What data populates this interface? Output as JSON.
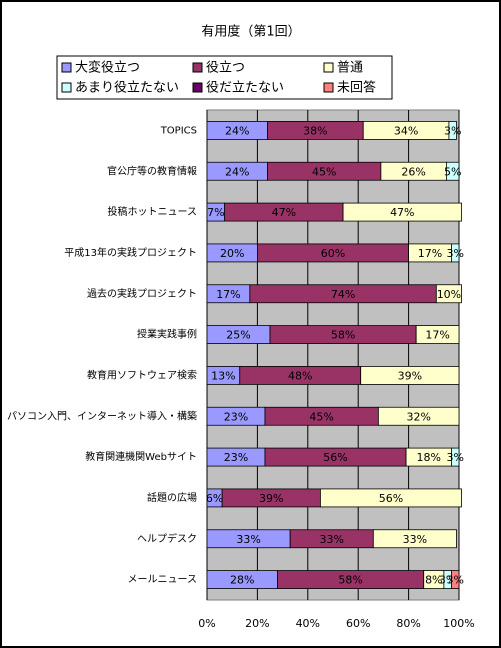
{
  "chart_data": {
    "type": "stacked-bar-horizontal",
    "title": "有用度（第1回）",
    "categories": [
      "TOPICS",
      "官公庁等の教育情報",
      "投稿ホットニュース",
      "平成13年の実践プロジェクト",
      "過去の実践プロジェクト",
      "授業実践事例",
      "教育用ソフトウェア検索",
      "パソコン入門、インターネット導入・構築",
      "教育関連機関Webサイト",
      "話題の広場",
      "ヘルプデスク",
      "メールニュース"
    ],
    "series": [
      {
        "name": "大変役立つ",
        "color": "#9999ff",
        "values": [
          24,
          24,
          7,
          20,
          17,
          25,
          13,
          23,
          23,
          6,
          33,
          28
        ],
        "value_labels": [
          "24%",
          "24%",
          "7%",
          "20%",
          "17%",
          "25%",
          "13%",
          "23%",
          "23%",
          "6%",
          "33%",
          "28%"
        ]
      },
      {
        "name": "役立つ",
        "color": "#993366",
        "values": [
          38,
          45,
          47,
          60,
          74,
          58,
          48,
          45,
          56,
          39,
          33,
          58
        ],
        "value_labels": [
          "38%",
          "45%",
          "47%",
          "60%",
          "74%",
          "58%",
          "48%",
          "45%",
          "56%",
          "39%",
          "33%",
          "58%"
        ]
      },
      {
        "name": "普通",
        "color": "#ffffcc",
        "values": [
          34,
          26,
          47,
          17,
          10,
          17,
          39,
          32,
          18,
          56,
          33,
          8
        ],
        "value_labels": [
          "34%",
          "26%",
          "47%",
          "17%",
          "10%",
          "17%",
          "39%",
          "32%",
          "18%",
          "56%",
          "33%",
          "8%"
        ]
      },
      {
        "name": "あまり役立たない",
        "color": "#ccffff",
        "values": [
          3,
          5,
          null,
          3,
          null,
          null,
          null,
          null,
          3,
          null,
          null,
          3
        ],
        "value_labels": [
          "3%",
          "5%",
          null,
          "3%",
          null,
          null,
          null,
          null,
          "3%",
          null,
          null,
          "3%"
        ]
      },
      {
        "name": "役だ立たない",
        "color": "#660066",
        "values": [
          null,
          null,
          null,
          null,
          null,
          null,
          null,
          null,
          null,
          null,
          null,
          null
        ],
        "value_labels": [
          null,
          null,
          null,
          null,
          null,
          null,
          null,
          null,
          null,
          null,
          null,
          null
        ]
      },
      {
        "name": "未回答",
        "color": "#ff8080",
        "values": [
          null,
          null,
          null,
          null,
          null,
          null,
          null,
          null,
          null,
          null,
          null,
          3
        ],
        "value_labels": [
          null,
          null,
          null,
          null,
          null,
          null,
          null,
          null,
          null,
          null,
          null,
          "3%"
        ]
      }
    ],
    "xlim": [
      0,
      100
    ],
    "xticks": [
      {
        "value": 0,
        "label": "0%"
      },
      {
        "value": 20,
        "label": "20%"
      },
      {
        "value": 40,
        "label": "40%"
      },
      {
        "value": 60,
        "label": "60%"
      },
      {
        "value": 80,
        "label": "80%"
      },
      {
        "value": 100,
        "label": "100%"
      }
    ],
    "grid": true
  }
}
